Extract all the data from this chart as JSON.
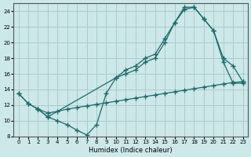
{
  "xlabel": "Humidex (Indice chaleur)",
  "bg_color": "#cce8e8",
  "grid_color": "#aacccc",
  "line_color": "#1a6b6b",
  "xlim": [
    -0.5,
    23.5
  ],
  "ylim": [
    8,
    25
  ],
  "yticks": [
    8,
    10,
    12,
    14,
    16,
    18,
    20,
    22,
    24
  ],
  "xticks": [
    0,
    1,
    2,
    3,
    4,
    5,
    6,
    7,
    8,
    9,
    10,
    11,
    12,
    13,
    14,
    15,
    16,
    17,
    18,
    19,
    20,
    21,
    22,
    23
  ],
  "series1_x": [
    0,
    1,
    2,
    3,
    10,
    11,
    12,
    13,
    14,
    15,
    16,
    17,
    18,
    19,
    20,
    21,
    22,
    23
  ],
  "series1_y": [
    13.5,
    12.2,
    11.5,
    10.5,
    15.5,
    16.0,
    16.5,
    17.5,
    18.0,
    20.0,
    22.5,
    24.5,
    24.5,
    23.0,
    21.5,
    17.5,
    14.8,
    14.8
  ],
  "series2_x": [
    2,
    3,
    4,
    5,
    6,
    7,
    8,
    9,
    10,
    11,
    12,
    13,
    14,
    15,
    16,
    17,
    18,
    19,
    20,
    21,
    22,
    23
  ],
  "series2_y": [
    11.5,
    10.5,
    10.0,
    9.5,
    8.8,
    8.2,
    9.5,
    13.5,
    15.5,
    16.5,
    17.0,
    18.0,
    18.5,
    20.5,
    22.5,
    24.2,
    24.5,
    23.0,
    21.5,
    18.0,
    17.0,
    15.0
  ],
  "series3_x": [
    0,
    1,
    2,
    3,
    4,
    5,
    6,
    7,
    8,
    9,
    10,
    11,
    12,
    13,
    14,
    15,
    16,
    17,
    18,
    19,
    20,
    21,
    22,
    23
  ],
  "series3_y": [
    13.5,
    12.2,
    11.5,
    11.0,
    11.2,
    11.5,
    11.7,
    11.9,
    12.1,
    12.3,
    12.5,
    12.7,
    12.9,
    13.1,
    13.3,
    13.5,
    13.7,
    13.9,
    14.1,
    14.3,
    14.5,
    14.7,
    14.9,
    15.0
  ]
}
